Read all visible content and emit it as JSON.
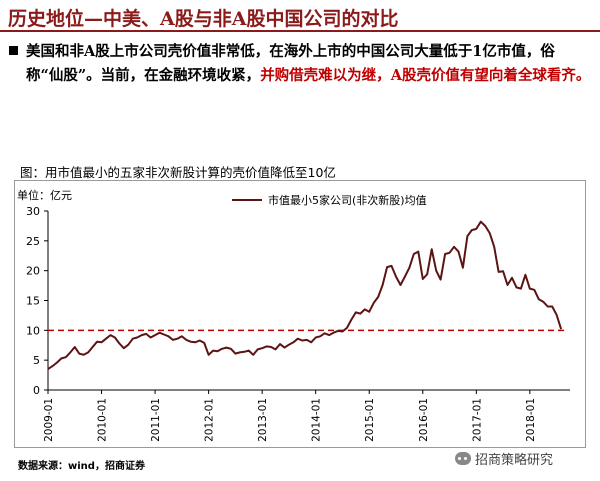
{
  "slide": {
    "title": "历史地位—中美、A股与非A股中国公司的对比"
  },
  "bullet": {
    "text_part1": "美国和非A股上市公司壳价值非常低，在海外上市的中国公司大量低于1亿市值，俗称“仙股”。当前，在金融环境收紧，",
    "text_highlight": "并购借壳难以为继，",
    "text_part2": "A股壳价值有望向着全球看齐。"
  },
  "figure": {
    "caption": "图：用市值最小的五家非次新股计算的壳价值降低至10亿",
    "unit_label": "单位：亿元"
  },
  "source_note": "数据来源：wind，招商证券",
  "watermark": "招商策略研究",
  "colors": {
    "brand": "#8b1a1a",
    "highlight": "#c00000",
    "line": "#5c1414",
    "reference": "#c00000"
  },
  "chart_data": {
    "type": "line",
    "title": "",
    "xlabel": "",
    "ylabel": "单位：亿元",
    "ylim": [
      0,
      30
    ],
    "yticks": [
      0,
      5,
      10,
      15,
      20,
      25,
      30
    ],
    "xlim": [
      "2009-01",
      "2018-10"
    ],
    "xticks": [
      "2009-01",
      "2010-01",
      "2011-01",
      "2012-01",
      "2013-01",
      "2014-01",
      "2015-01",
      "2016-01",
      "2017-01",
      "2018-01"
    ],
    "grid": false,
    "legend_position": "top-center",
    "reference_line": {
      "y": 10,
      "style": "dashed"
    },
    "series": [
      {
        "name": "市值最小5家公司(非次新股)均值",
        "points": [
          [
            "2009-01",
            3.5
          ],
          [
            "2009-02",
            4.0
          ],
          [
            "2009-03",
            4.6
          ],
          [
            "2009-04",
            5.3
          ],
          [
            "2009-05",
            5.5
          ],
          [
            "2009-06",
            6.3
          ],
          [
            "2009-07",
            7.2
          ],
          [
            "2009-08",
            6.1
          ],
          [
            "2009-09",
            5.9
          ],
          [
            "2009-10",
            6.3
          ],
          [
            "2009-11",
            7.2
          ],
          [
            "2009-12",
            8.1
          ],
          [
            "2010-01",
            8.0
          ],
          [
            "2010-02",
            8.6
          ],
          [
            "2010-03",
            9.2
          ],
          [
            "2010-04",
            8.8
          ],
          [
            "2010-05",
            7.8
          ],
          [
            "2010-06",
            7.0
          ],
          [
            "2010-07",
            7.6
          ],
          [
            "2010-08",
            8.6
          ],
          [
            "2010-09",
            8.8
          ],
          [
            "2010-10",
            9.2
          ],
          [
            "2010-11",
            9.4
          ],
          [
            "2010-12",
            8.8
          ],
          [
            "2011-01",
            9.2
          ],
          [
            "2011-02",
            9.6
          ],
          [
            "2011-03",
            9.3
          ],
          [
            "2011-04",
            9.0
          ],
          [
            "2011-05",
            8.4
          ],
          [
            "2011-06",
            8.6
          ],
          [
            "2011-07",
            9.0
          ],
          [
            "2011-08",
            8.4
          ],
          [
            "2011-09",
            8.1
          ],
          [
            "2011-10",
            8.0
          ],
          [
            "2011-11",
            8.3
          ],
          [
            "2011-12",
            7.9
          ],
          [
            "2012-01",
            5.9
          ],
          [
            "2012-02",
            6.6
          ],
          [
            "2012-03",
            6.5
          ],
          [
            "2012-04",
            6.9
          ],
          [
            "2012-05",
            7.1
          ],
          [
            "2012-06",
            6.9
          ],
          [
            "2012-07",
            6.1
          ],
          [
            "2012-08",
            6.3
          ],
          [
            "2012-09",
            6.4
          ],
          [
            "2012-10",
            6.6
          ],
          [
            "2012-11",
            5.9
          ],
          [
            "2012-12",
            6.8
          ],
          [
            "2013-01",
            7.0
          ],
          [
            "2013-02",
            7.3
          ],
          [
            "2013-03",
            7.2
          ],
          [
            "2013-04",
            6.8
          ],
          [
            "2013-05",
            7.7
          ],
          [
            "2013-06",
            7.1
          ],
          [
            "2013-07",
            7.6
          ],
          [
            "2013-08",
            8.0
          ],
          [
            "2013-09",
            8.6
          ],
          [
            "2013-10",
            8.3
          ],
          [
            "2013-11",
            8.4
          ],
          [
            "2013-12",
            8.0
          ],
          [
            "2014-01",
            8.8
          ],
          [
            "2014-02",
            9.0
          ],
          [
            "2014-03",
            9.5
          ],
          [
            "2014-04",
            9.2
          ],
          [
            "2014-05",
            9.6
          ],
          [
            "2014-06",
            9.9
          ],
          [
            "2014-07",
            9.8
          ],
          [
            "2014-08",
            10.4
          ],
          [
            "2014-09",
            11.8
          ],
          [
            "2014-10",
            13.0
          ],
          [
            "2014-11",
            12.8
          ],
          [
            "2014-12",
            13.5
          ],
          [
            "2015-01",
            13.1
          ],
          [
            "2015-02",
            14.6
          ],
          [
            "2015-03",
            15.6
          ],
          [
            "2015-04",
            17.6
          ],
          [
            "2015-05",
            20.6
          ],
          [
            "2015-06",
            20.8
          ],
          [
            "2015-07",
            19.0
          ],
          [
            "2015-08",
            17.6
          ],
          [
            "2015-09",
            19.0
          ],
          [
            "2015-10",
            20.5
          ],
          [
            "2015-11",
            22.8
          ],
          [
            "2015-12",
            23.2
          ],
          [
            "2016-01",
            18.6
          ],
          [
            "2016-02",
            19.4
          ],
          [
            "2016-03",
            23.6
          ],
          [
            "2016-04",
            20.0
          ],
          [
            "2016-05",
            18.5
          ],
          [
            "2016-06",
            22.8
          ],
          [
            "2016-07",
            23.0
          ],
          [
            "2016-08",
            24.0
          ],
          [
            "2016-09",
            23.2
          ],
          [
            "2016-10",
            20.5
          ],
          [
            "2016-11",
            25.8
          ],
          [
            "2016-12",
            26.8
          ],
          [
            "2017-01",
            27.0
          ],
          [
            "2017-02",
            28.2
          ],
          [
            "2017-03",
            27.5
          ],
          [
            "2017-04",
            26.3
          ],
          [
            "2017-05",
            24.0
          ],
          [
            "2017-06",
            19.8
          ],
          [
            "2017-07",
            19.9
          ],
          [
            "2017-08",
            17.6
          ],
          [
            "2017-09",
            18.8
          ],
          [
            "2017-10",
            17.2
          ],
          [
            "2017-11",
            17.0
          ],
          [
            "2017-12",
            19.3
          ],
          [
            "2018-01",
            17.0
          ],
          [
            "2018-02",
            16.8
          ],
          [
            "2018-03",
            15.2
          ],
          [
            "2018-04",
            14.8
          ],
          [
            "2018-05",
            14.0
          ],
          [
            "2018-06",
            14.0
          ],
          [
            "2018-07",
            12.6
          ],
          [
            "2018-08",
            10.2
          ]
        ]
      }
    ]
  }
}
